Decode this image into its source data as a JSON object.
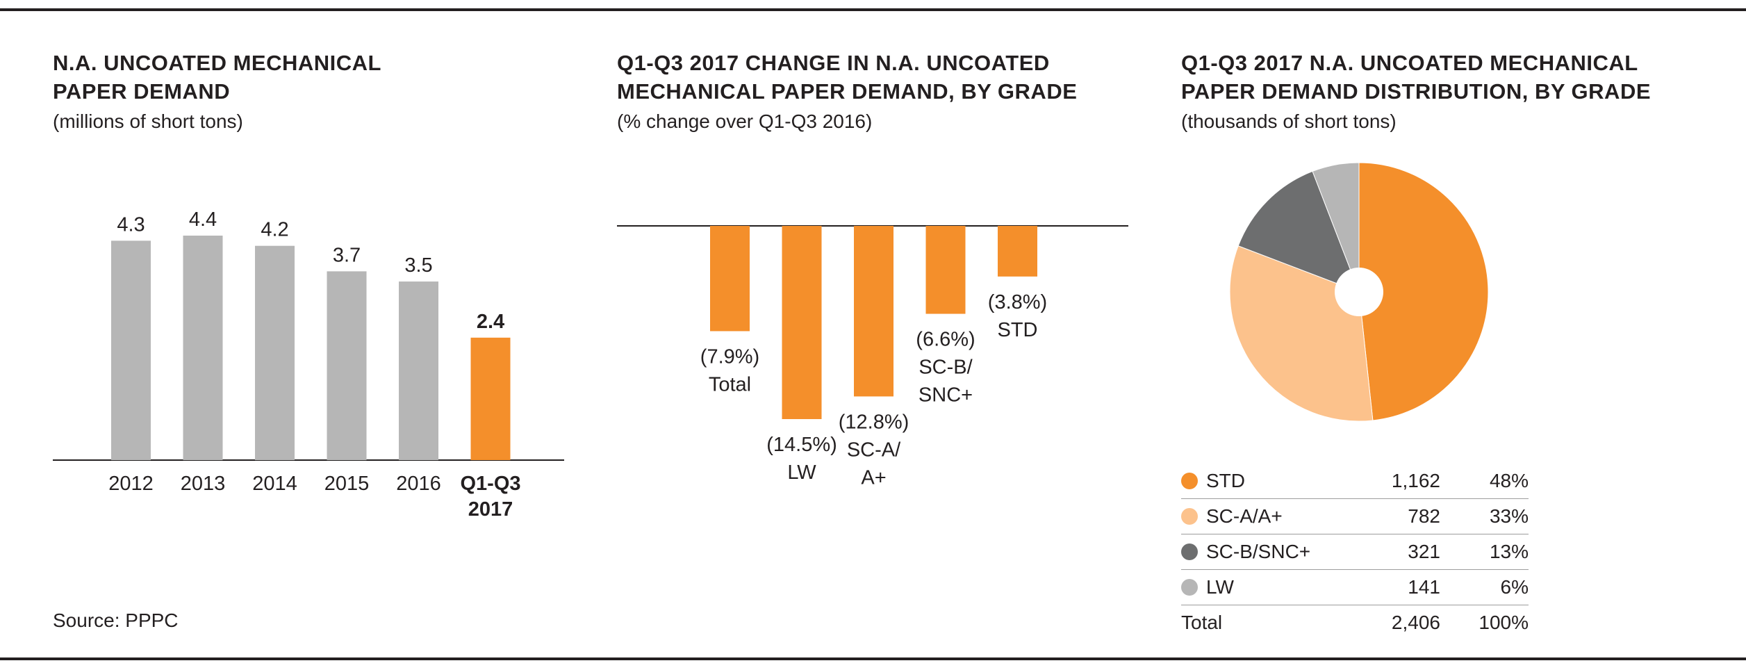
{
  "source": "Source: PPPC",
  "colors": {
    "orange": "#f48f2b",
    "light_orange": "#fcc28c",
    "dark_gray": "#6d6e6f",
    "light_gray": "#b6b6b6",
    "axis": "#231f20"
  },
  "panels": {
    "demand": {
      "title": "N.A. UNCOATED MECHANICAL\nPAPER DEMAND",
      "subtitle": "(millions of short tons)"
    },
    "change": {
      "title": "Q1-Q3 2017 CHANGE IN N.A. UNCOATED\nMECHANICAL PAPER DEMAND, BY GRADE",
      "subtitle": "(% change over Q1-Q3 2016)"
    },
    "distribution": {
      "title": "Q1-Q3 2017 N.A. UNCOATED MECHANICAL\nPAPER DEMAND DISTRIBUTION, BY GRADE",
      "subtitle": "(thousands of short tons)"
    }
  },
  "chart_data": [
    {
      "type": "bar",
      "title": "N.A. UNCOATED MECHANICAL PAPER DEMAND",
      "subtitle": "(millions of short tons)",
      "categories": [
        "2012",
        "2013",
        "2014",
        "2015",
        "2016",
        "Q1-Q3 2017"
      ],
      "category_lines": [
        [
          "2012"
        ],
        [
          "2013"
        ],
        [
          "2014"
        ],
        [
          "2015"
        ],
        [
          "2016"
        ],
        [
          "Q1-Q3",
          "2017"
        ]
      ],
      "values": [
        4.3,
        4.4,
        4.2,
        3.7,
        3.5,
        2.4
      ],
      "value_labels": [
        "4.3",
        "4.4",
        "4.2",
        "3.7",
        "3.5",
        "2.4"
      ],
      "highlight_index": 5,
      "ylim": [
        0,
        4.4
      ],
      "grid": false
    },
    {
      "type": "bar",
      "title": "Q1-Q3 2017 CHANGE IN N.A. UNCOATED MECHANICAL PAPER DEMAND, BY GRADE",
      "subtitle": "(% change over Q1-Q3 2016)",
      "categories": [
        "Total",
        "LW",
        "SC-A/A+",
        "SC-B/SNC+",
        "STD"
      ],
      "values": [
        -7.9,
        -14.5,
        -12.8,
        -6.6,
        -3.8
      ],
      "labels": [
        [
          "(7.9%)",
          "Total"
        ],
        [
          "(14.5%)",
          "LW"
        ],
        [
          "(12.8%)",
          "SC-A/",
          "A+"
        ],
        [
          "(6.6%)",
          "SC-B/",
          "SNC+"
        ],
        [
          "(3.8%)",
          "STD"
        ]
      ],
      "ylim": [
        -14.5,
        0
      ],
      "grid": false
    },
    {
      "type": "pie",
      "title": "Q1-Q3 2017 N.A. UNCOATED MECHANICAL PAPER DEMAND DISTRIBUTION, BY GRADE",
      "subtitle": "(thousands of short tons)",
      "slices": [
        {
          "label": "STD",
          "value": 1162,
          "value_label": "1,162",
          "percent_label": "48%",
          "color": "#f48f2b"
        },
        {
          "label": "SC-A/A+",
          "value": 782,
          "value_label": "782",
          "percent_label": "33%",
          "color": "#fcc28c"
        },
        {
          "label": "SC-B/SNC+",
          "value": 321,
          "value_label": "321",
          "percent_label": "13%",
          "color": "#6d6e6f"
        },
        {
          "label": "LW",
          "value": 141,
          "value_label": "141",
          "percent_label": "6%",
          "color": "#b6b6b6"
        }
      ],
      "total": {
        "label": "Total",
        "value_label": "2,406",
        "percent_label": "100%"
      },
      "legend_position": "bottom"
    }
  ]
}
